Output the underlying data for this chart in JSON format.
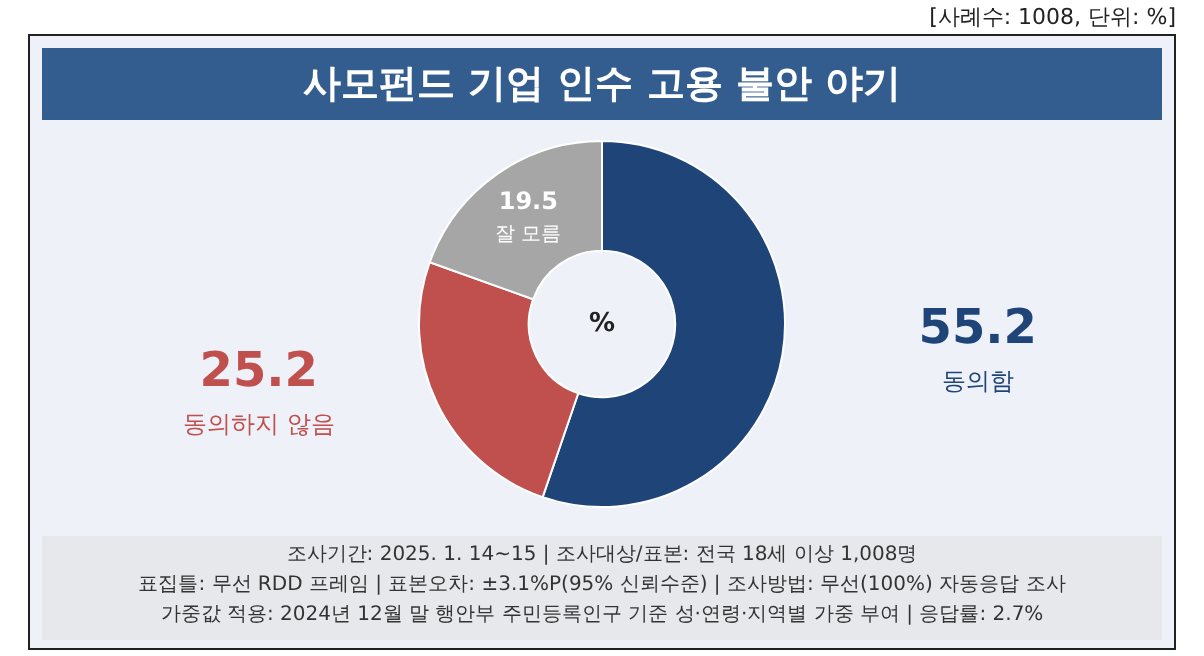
{
  "chart_data": {
    "type": "donut",
    "title": "사모펀드 기업 인수 고용 불안 야기",
    "categories": [
      "동의함",
      "동의하지 않음",
      "잘 모름"
    ],
    "values": [
      55.2,
      25.2,
      19.5
    ],
    "colors": [
      "#1f4477",
      "#c0504d",
      "#a6a6a6"
    ],
    "data_labels": true,
    "annotations": [
      "[사례수: 1008, 단위: %]",
      "%",
      "조사기간: 2025. 1. 14~15 | 조사대상/표본: 전국 18세 이상 1,008명",
      "표집틀: 무선 RDD 프레임 | 표본오차: ±3.1%P(95% 신뢰수준) | 조사방법: 무선(100%) 자동응답 조사",
      "가중값 적용: 2024년 12월 말 행안부 주민등록인구 기준 성·연령·지역별 가중 부여 | 응답률: 2.7%"
    ]
  }
}
